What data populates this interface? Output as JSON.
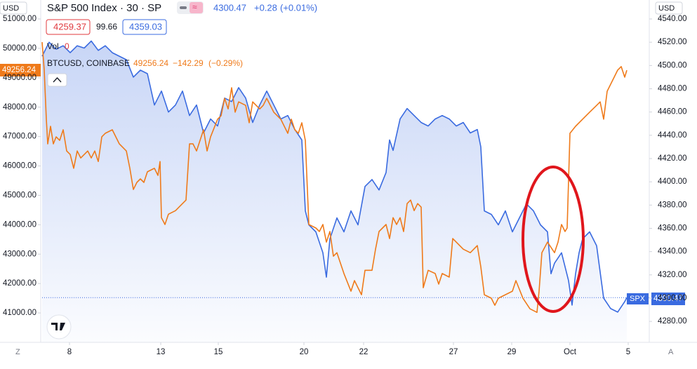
{
  "chart_data": {
    "type": "line",
    "title": "S&P 500 Index · 30 · SP",
    "currency": "USD",
    "corner_left": "Z",
    "corner_right": "A",
    "ohlc": [
      4259.37,
      99.66,
      4359.03
    ],
    "volume_label": "Vol",
    "volume": 0,
    "xlim": [
      0,
      865
    ],
    "xticks": [
      {
        "value": 39,
        "label": "8"
      },
      {
        "value": 169,
        "label": "13"
      },
      {
        "value": 251,
        "label": "15"
      },
      {
        "value": 373,
        "label": "20"
      },
      {
        "value": 458,
        "label": "22"
      },
      {
        "value": 586,
        "label": "27"
      },
      {
        "value": 669,
        "label": "29"
      },
      {
        "value": 752,
        "label": "Oct"
      },
      {
        "value": 835,
        "label": "5"
      }
    ],
    "ylim": [
      40000,
      51645
    ],
    "yticks": [
      {
        "value": 41000,
        "label": "41000.00"
      },
      {
        "value": 42000,
        "label": "42000.00"
      },
      {
        "value": 43000,
        "label": "43000.00"
      },
      {
        "value": 44000,
        "label": "44000.00"
      },
      {
        "value": 45000,
        "label": "45000.00"
      },
      {
        "value": 46000,
        "label": "46000.00"
      },
      {
        "value": 47000,
        "label": "47000.00"
      },
      {
        "value": 48000,
        "label": "48000.00"
      },
      {
        "value": 49000,
        "label": "49000.00"
      },
      {
        "value": 50000,
        "label": "50000.00"
      },
      {
        "value": 51000,
        "label": "51000.00"
      }
    ],
    "y2lim": [
      4262,
      4556.3
    ],
    "y2ticks": [
      {
        "value": 4280,
        "label": "4280.00"
      },
      {
        "value": 4300,
        "label": "4300.00"
      },
      {
        "value": 4320,
        "label": "4320.00"
      },
      {
        "value": 4340,
        "label": "4340.00"
      },
      {
        "value": 4360,
        "label": "4360.00"
      },
      {
        "value": 4380,
        "label": "4380.00"
      },
      {
        "value": 4400,
        "label": "4400.00"
      },
      {
        "value": 4420,
        "label": "4420.00"
      },
      {
        "value": 4440,
        "label": "4440.00"
      },
      {
        "value": 4460,
        "label": "4460.00"
      },
      {
        "value": 4480,
        "label": "4480.00"
      },
      {
        "value": 4500,
        "label": "4500.00"
      },
      {
        "value": 4520,
        "label": "4520.00"
      },
      {
        "value": 4540,
        "label": "4540.00"
      }
    ],
    "series": [
      {
        "name": "BTCUSD, COINBASE",
        "color": "#ef7a1a",
        "axis": "y",
        "fill": false,
        "change": "−142.29",
        "change_pct": "(−0.29%)",
        "x": [
          0,
          3,
          6,
          8,
          12,
          16,
          20,
          25,
          30,
          35,
          40,
          45,
          50,
          55,
          60,
          65,
          70,
          75,
          80,
          85,
          90,
          100,
          110,
          120,
          125,
          130,
          135,
          140,
          145,
          150,
          160,
          165,
          168,
          170,
          175,
          180,
          190,
          200,
          205,
          210,
          215,
          220,
          230,
          235,
          240,
          250,
          255,
          260,
          265,
          270,
          275,
          280,
          290,
          295,
          300,
          310,
          315,
          320,
          330,
          340,
          350,
          355,
          360,
          365,
          370,
          375,
          380,
          390,
          395,
          400,
          405,
          410,
          415,
          420,
          430,
          440,
          445,
          450,
          455,
          460,
          470,
          475,
          480,
          490,
          495,
          500,
          505,
          510,
          515,
          520,
          525,
          530,
          535,
          540,
          543,
          550,
          560,
          565,
          570,
          580,
          585,
          590,
          600,
          610,
          620,
          625,
          630,
          640,
          645,
          650,
          660,
          670,
          675,
          685,
          695,
          705,
          708,
          712,
          720,
          730,
          735,
          740,
          745,
          748,
          752,
          760,
          770,
          780,
          790,
          795,
          800,
          805,
          815,
          820,
          825,
          830,
          833
        ],
        "values": [
          50210,
          49260,
          47590,
          46750,
          47350,
          46750,
          46990,
          46870,
          47230,
          46510,
          46390,
          45920,
          46510,
          46270,
          46390,
          46510,
          46270,
          46510,
          46150,
          46990,
          47110,
          47230,
          46750,
          46510,
          45920,
          45200,
          45440,
          45560,
          45440,
          45800,
          45920,
          45680,
          46150,
          44240,
          44010,
          44360,
          44480,
          44720,
          44840,
          46750,
          46750,
          46510,
          47230,
          46510,
          46990,
          47590,
          47710,
          48300,
          47940,
          48660,
          47830,
          48180,
          48060,
          47470,
          48180,
          47940,
          48060,
          48300,
          47830,
          47590,
          47110,
          47590,
          47230,
          47110,
          47470,
          46870,
          44010,
          43890,
          43770,
          44010,
          43410,
          43770,
          42930,
          43050,
          42340,
          41740,
          42100,
          41860,
          41620,
          42450,
          42450,
          43170,
          43770,
          44010,
          43530,
          44240,
          44010,
          44240,
          43770,
          44720,
          44840,
          44480,
          44720,
          44600,
          41860,
          42450,
          42340,
          41980,
          42340,
          42220,
          43530,
          43410,
          43170,
          43050,
          43290,
          42570,
          41620,
          41500,
          41260,
          41500,
          41620,
          41740,
          42100,
          41500,
          41140,
          41020,
          41740,
          43050,
          43410,
          43050,
          43410,
          44010,
          43770,
          43890,
          47110,
          47350,
          47590,
          47830,
          48060,
          48180,
          47590,
          48540,
          49020,
          49260,
          49380,
          49020,
          49256.24
        ]
      },
      {
        "name": "SPX",
        "color": "#3a6be0",
        "axis": "y2",
        "fill": true,
        "change": "+0.28",
        "change_pct": "(+0.01%)",
        "x": [
          0,
          10,
          20,
          30,
          40,
          50,
          60,
          70,
          80,
          90,
          100,
          110,
          120,
          130,
          140,
          150,
          160,
          170,
          180,
          190,
          200,
          210,
          220,
          230,
          240,
          250,
          260,
          270,
          280,
          290,
          300,
          310,
          320,
          330,
          340,
          350,
          360,
          370,
          375,
          380,
          390,
          400,
          405,
          410,
          420,
          430,
          440,
          450,
          460,
          470,
          480,
          490,
          495,
          500,
          510,
          520,
          530,
          540,
          550,
          560,
          570,
          580,
          590,
          600,
          610,
          620,
          625,
          630,
          640,
          650,
          660,
          670,
          680,
          690,
          700,
          710,
          720,
          725,
          730,
          740,
          750,
          755,
          760,
          765,
          770,
          780,
          790,
          800,
          810,
          820,
          830,
          833
        ],
        "values": [
          4508,
          4520,
          4514,
          4517,
          4511,
          4517,
          4515,
          4521,
          4513,
          4517,
          4511,
          4508,
          4505,
          4490,
          4496,
          4493,
          4466,
          4478,
          4460,
          4466,
          4478,
          4457,
          4466,
          4442,
          4454,
          4448,
          4472,
          4469,
          4481,
          4472,
          4451,
          4466,
          4478,
          4466,
          4454,
          4457,
          4445,
          4436,
          4375,
          4363,
          4357,
          4339,
          4318,
          4351,
          4369,
          4357,
          4375,
          4363,
          4396,
          4402,
          4393,
          4408,
          4436,
          4427,
          4454,
          4463,
          4457,
          4451,
          4448,
          4454,
          4457,
          4454,
          4448,
          4451,
          4442,
          4445,
          4430,
          4375,
          4372,
          4363,
          4375,
          4357,
          4369,
          4381,
          4375,
          4363,
          4357,
          4321,
          4330,
          4339,
          4315,
          4294,
          4321,
          4339,
          4351,
          4357,
          4345,
          4300,
          4291,
          4288,
          4297,
          4300.47
        ]
      }
    ]
  }
}
